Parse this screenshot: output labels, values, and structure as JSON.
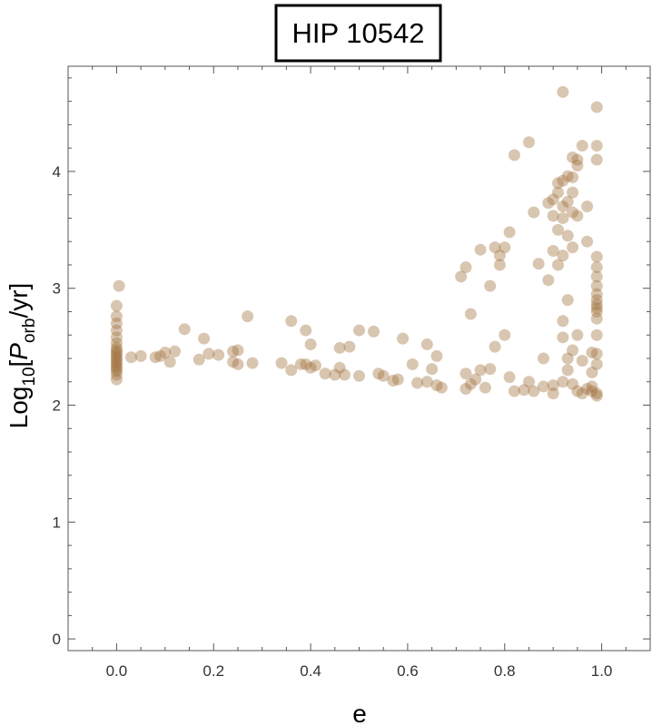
{
  "chart_data": {
    "type": "scatter",
    "title": "HIP 10542",
    "xlabel": "e",
    "ylabel": {
      "prefix": "Log",
      "prefix_sub": "10",
      "open": "[",
      "var": "P",
      "var_sub": "orb",
      "suffix": "/yr]"
    },
    "xlim": [
      -0.1,
      1.1
    ],
    "ylim": [
      -0.1,
      4.9
    ],
    "xticks": [
      "0.0",
      "0.2",
      "0.4",
      "0.6",
      "0.8",
      "1.0"
    ],
    "yticks": [
      "0",
      "1",
      "2",
      "3",
      "4"
    ],
    "grid": false,
    "point_color": "#a0703c",
    "point_opacity": 0.4,
    "points": [
      [
        0.0,
        2.22
      ],
      [
        0.0,
        2.26
      ],
      [
        0.0,
        2.29
      ],
      [
        0.0,
        2.31
      ],
      [
        0.0,
        2.33
      ],
      [
        0.0,
        2.35
      ],
      [
        0.0,
        2.37
      ],
      [
        0.0,
        2.39
      ],
      [
        0.0,
        2.41
      ],
      [
        0.0,
        2.43
      ],
      [
        0.0,
        2.45
      ],
      [
        0.0,
        2.47
      ],
      [
        0.0,
        2.49
      ],
      [
        0.0,
        2.53
      ],
      [
        0.0,
        2.58
      ],
      [
        0.0,
        2.64
      ],
      [
        0.0,
        2.7
      ],
      [
        0.0,
        2.76
      ],
      [
        0.0,
        2.85
      ],
      [
        0.005,
        3.02
      ],
      [
        0.03,
        2.41
      ],
      [
        0.05,
        2.42
      ],
      [
        0.08,
        2.41
      ],
      [
        0.09,
        2.42
      ],
      [
        0.1,
        2.45
      ],
      [
        0.11,
        2.37
      ],
      [
        0.12,
        2.46
      ],
      [
        0.14,
        2.65
      ],
      [
        0.17,
        2.39
      ],
      [
        0.18,
        2.57
      ],
      [
        0.19,
        2.44
      ],
      [
        0.21,
        2.43
      ],
      [
        0.24,
        2.46
      ],
      [
        0.24,
        2.37
      ],
      [
        0.25,
        2.47
      ],
      [
        0.25,
        2.35
      ],
      [
        0.27,
        2.76
      ],
      [
        0.28,
        2.36
      ],
      [
        0.34,
        2.36
      ],
      [
        0.36,
        2.72
      ],
      [
        0.36,
        2.3
      ],
      [
        0.38,
        2.35
      ],
      [
        0.39,
        2.64
      ],
      [
        0.39,
        2.35
      ],
      [
        0.4,
        2.52
      ],
      [
        0.4,
        2.32
      ],
      [
        0.41,
        2.34
      ],
      [
        0.43,
        2.27
      ],
      [
        0.45,
        2.26
      ],
      [
        0.46,
        2.49
      ],
      [
        0.46,
        2.32
      ],
      [
        0.47,
        2.26
      ],
      [
        0.48,
        2.5
      ],
      [
        0.5,
        2.64
      ],
      [
        0.5,
        2.25
      ],
      [
        0.53,
        2.63
      ],
      [
        0.54,
        2.27
      ],
      [
        0.55,
        2.25
      ],
      [
        0.57,
        2.21
      ],
      [
        0.58,
        2.22
      ],
      [
        0.59,
        2.57
      ],
      [
        0.61,
        2.35
      ],
      [
        0.62,
        2.19
      ],
      [
        0.64,
        2.2
      ],
      [
        0.64,
        2.52
      ],
      [
        0.65,
        2.31
      ],
      [
        0.66,
        2.17
      ],
      [
        0.66,
        2.42
      ],
      [
        0.67,
        2.15
      ],
      [
        0.71,
        3.1
      ],
      [
        0.72,
        2.27
      ],
      [
        0.72,
        2.14
      ],
      [
        0.72,
        3.18
      ],
      [
        0.73,
        2.78
      ],
      [
        0.73,
        2.18
      ],
      [
        0.74,
        2.22
      ],
      [
        0.75,
        2.3
      ],
      [
        0.75,
        3.33
      ],
      [
        0.76,
        2.15
      ],
      [
        0.77,
        2.31
      ],
      [
        0.77,
        3.02
      ],
      [
        0.78,
        2.5
      ],
      [
        0.78,
        3.35
      ],
      [
        0.79,
        3.28
      ],
      [
        0.79,
        3.2
      ],
      [
        0.8,
        2.6
      ],
      [
        0.8,
        3.35
      ],
      [
        0.81,
        2.24
      ],
      [
        0.81,
        3.48
      ],
      [
        0.82,
        4.14
      ],
      [
        0.82,
        2.12
      ],
      [
        0.84,
        2.13
      ],
      [
        0.85,
        4.25
      ],
      [
        0.85,
        2.2
      ],
      [
        0.86,
        3.65
      ],
      [
        0.86,
        2.12
      ],
      [
        0.87,
        3.21
      ],
      [
        0.88,
        2.4
      ],
      [
        0.88,
        2.16
      ],
      [
        0.89,
        3.73
      ],
      [
        0.89,
        3.07
      ],
      [
        0.9,
        3.62
      ],
      [
        0.9,
        3.32
      ],
      [
        0.9,
        2.1
      ],
      [
        0.9,
        2.17
      ],
      [
        0.9,
        3.76
      ],
      [
        0.91,
        3.82
      ],
      [
        0.91,
        3.9
      ],
      [
        0.91,
        3.5
      ],
      [
        0.91,
        3.2
      ],
      [
        0.92,
        3.92
      ],
      [
        0.92,
        3.6
      ],
      [
        0.92,
        3.7
      ],
      [
        0.92,
        3.28
      ],
      [
        0.92,
        2.72
      ],
      [
        0.92,
        2.2
      ],
      [
        0.92,
        4.68
      ],
      [
        0.92,
        2.58
      ],
      [
        0.93,
        3.96
      ],
      [
        0.93,
        3.74
      ],
      [
        0.93,
        3.45
      ],
      [
        0.93,
        2.3
      ],
      [
        0.93,
        2.4
      ],
      [
        0.93,
        2.9
      ],
      [
        0.94,
        4.12
      ],
      [
        0.94,
        3.95
      ],
      [
        0.94,
        3.82
      ],
      [
        0.94,
        3.65
      ],
      [
        0.94,
        3.35
      ],
      [
        0.94,
        2.47
      ],
      [
        0.94,
        2.18
      ],
      [
        0.95,
        4.05
      ],
      [
        0.95,
        4.1
      ],
      [
        0.95,
        3.62
      ],
      [
        0.95,
        2.6
      ],
      [
        0.95,
        2.12
      ],
      [
        0.96,
        2.38
      ],
      [
        0.96,
        2.1
      ],
      [
        0.96,
        4.22
      ],
      [
        0.97,
        3.4
      ],
      [
        0.97,
        3.7
      ],
      [
        0.97,
        2.14
      ],
      [
        0.98,
        2.16
      ],
      [
        0.98,
        2.12
      ],
      [
        0.98,
        2.28
      ],
      [
        0.98,
        2.45
      ],
      [
        0.99,
        4.55
      ],
      [
        0.99,
        4.22
      ],
      [
        0.99,
        4.1
      ],
      [
        0.99,
        3.27
      ],
      [
        0.99,
        3.18
      ],
      [
        0.99,
        3.1
      ],
      [
        0.99,
        3.02
      ],
      [
        0.99,
        2.95
      ],
      [
        0.99,
        2.9
      ],
      [
        0.99,
        2.86
      ],
      [
        0.99,
        2.83
      ],
      [
        0.99,
        2.8
      ],
      [
        0.99,
        2.74
      ],
      [
        0.99,
        2.6
      ],
      [
        0.99,
        2.44
      ],
      [
        0.99,
        2.1
      ],
      [
        0.99,
        2.08
      ],
      [
        0.99,
        2.35
      ]
    ]
  }
}
